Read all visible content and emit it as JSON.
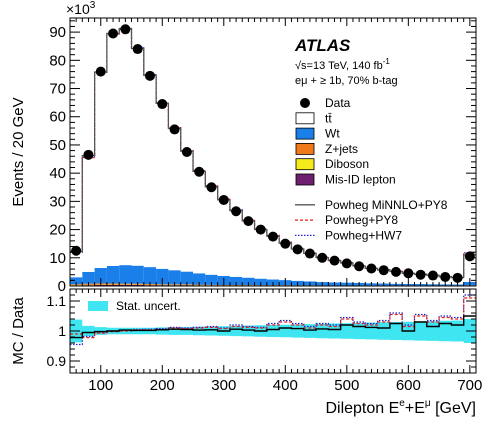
{
  "chart_data": {
    "type": "histogram",
    "experiment": "ATLAS",
    "multiplier": "×10",
    "multiplier_exp": "3",
    "energy_text": "s=13 TeV, 140 fb",
    "energy_exp": "-1",
    "sqrt_symbol": "√",
    "selection": "eμ + ≥ 1b, 70% b-tag",
    "ylabel": "Events / 20 GeV",
    "xlabel_parts": {
      "base": "Dilepton E",
      "sup1": "e",
      "mid": "+E",
      "sup2": "μ",
      "unit": " [GeV]"
    },
    "ratio_ylabel": "MC / Data",
    "xlim": [
      50,
      710
    ],
    "ylim": [
      0,
      95
    ],
    "ratio_ylim": [
      0.86,
      1.14
    ],
    "x_ticks": [
      100,
      200,
      300,
      400,
      500,
      600,
      700
    ],
    "y_ticks": [
      0,
      10,
      20,
      30,
      40,
      50,
      60,
      70,
      80,
      90
    ],
    "ratio_y_ticks": [
      0.9,
      1,
      1.1
    ],
    "bin_edges": [
      50,
      70,
      90,
      110,
      130,
      150,
      170,
      190,
      210,
      230,
      250,
      270,
      290,
      310,
      330,
      350,
      370,
      390,
      410,
      430,
      450,
      470,
      490,
      510,
      530,
      550,
      570,
      590,
      610,
      630,
      650,
      670,
      690,
      710
    ],
    "data": [
      12.5,
      46.5,
      76,
      89.5,
      91,
      84,
      74.5,
      64.5,
      55.5,
      47.5,
      40.5,
      35,
      30.5,
      26.5,
      23,
      20,
      17.5,
      15,
      13,
      11.5,
      10,
      9,
      8,
      7,
      6.2,
      5.6,
      5,
      4.5,
      4,
      3.7,
      3.2,
      2.9,
      10.5
    ],
    "wt": [
      2.5,
      4.2,
      5.5,
      6.2,
      6.6,
      6.4,
      6.0,
      5.5,
      5.0,
      4.5,
      4.0,
      3.6,
      3.2,
      2.9,
      2.6,
      2.3,
      2.0,
      1.8,
      1.6,
      1.4,
      1.2,
      1.1,
      1.0,
      0.9,
      0.8,
      0.7,
      0.6,
      0.55,
      0.5,
      0.45,
      0.4,
      0.35,
      1.2
    ],
    "zjets": [
      0.3,
      0.4,
      0.4,
      0.4,
      0.3,
      0.3,
      0.3,
      0.2,
      0.2,
      0.2,
      0.2,
      0.1,
      0.1,
      0.1,
      0.1,
      0.1,
      0.1,
      0.1,
      0.1,
      0.1,
      0.05,
      0.05,
      0.05,
      0.05,
      0.05,
      0.05,
      0.05,
      0.05,
      0.05,
      0.05,
      0.05,
      0.05,
      0.1
    ],
    "diboson": [
      0.1,
      0.1,
      0.1,
      0.1,
      0.1,
      0.1,
      0.1,
      0.1,
      0.1,
      0.1,
      0.1,
      0.1,
      0.05,
      0.05,
      0.05,
      0.05,
      0.05,
      0.05,
      0.05,
      0.05,
      0.05,
      0.05,
      0.05,
      0.05,
      0.05,
      0.05,
      0.05,
      0.05,
      0.05,
      0.05,
      0.05,
      0.05,
      0.05
    ],
    "misid": [
      0.2,
      0.3,
      0.4,
      0.4,
      0.4,
      0.4,
      0.3,
      0.3,
      0.3,
      0.3,
      0.2,
      0.2,
      0.2,
      0.2,
      0.2,
      0.15,
      0.15,
      0.15,
      0.1,
      0.1,
      0.1,
      0.1,
      0.1,
      0.1,
      0.1,
      0.1,
      0.1,
      0.1,
      0.1,
      0.1,
      0.1,
      0.1,
      0.1
    ],
    "ratio_minnlo": [
      0.978,
      0.995,
      0.998,
      1.0,
      1.003,
      1.002,
      1.002,
      1.004,
      1.006,
      1.005,
      1.003,
      1.004,
      1.0,
      1.006,
      1.003,
      1.0,
      1.005,
      1.01,
      1.008,
      1.003,
      1.007,
      1.005,
      1.02,
      1.015,
      1.012,
      1.01,
      1.025,
      1.0,
      1.03,
      1.015,
      1.025,
      1.02,
      1.05
    ],
    "ratio_py8": [
      0.99,
      0.978,
      0.993,
      0.998,
      1.0,
      1.004,
      1.004,
      1.005,
      1.01,
      1.008,
      1.01,
      1.012,
      1.008,
      1.015,
      1.012,
      1.01,
      1.02,
      1.03,
      1.02,
      1.01,
      1.02,
      1.015,
      1.04,
      1.025,
      1.02,
      1.03,
      1.055,
      1.015,
      1.05,
      1.03,
      1.045,
      1.04,
      1.11
    ],
    "ratio_hw7": [
      0.955,
      0.982,
      0.996,
      1.0,
      1.002,
      1.005,
      1.006,
      1.008,
      1.012,
      1.01,
      1.012,
      1.015,
      1.01,
      1.02,
      1.015,
      1.012,
      1.025,
      1.035,
      1.025,
      1.015,
      1.025,
      1.02,
      1.045,
      1.03,
      1.025,
      1.035,
      1.06,
      1.02,
      1.055,
      1.035,
      1.05,
      1.045,
      1.12
    ],
    "ratio_unc": [
      0.038,
      0.017,
      0.013,
      0.011,
      0.011,
      0.011,
      0.011,
      0.012,
      0.013,
      0.013,
      0.014,
      0.015,
      0.016,
      0.017,
      0.018,
      0.019,
      0.02,
      0.021,
      0.022,
      0.023,
      0.024,
      0.025,
      0.026,
      0.027,
      0.028,
      0.029,
      0.03,
      0.031,
      0.032,
      0.033,
      0.034,
      0.035,
      0.04
    ],
    "legend": [
      {
        "key": "data",
        "label": "Data"
      },
      {
        "key": "ttbar",
        "label": "tt̄"
      },
      {
        "key": "wt",
        "label": "Wt"
      },
      {
        "key": "zjets",
        "label": "Z+jets"
      },
      {
        "key": "diboson",
        "label": "Diboson"
      },
      {
        "key": "misid",
        "label": "Mis-ID lepton"
      },
      {
        "key": "minnlo",
        "label": "Powheg MiNNLO+PY8"
      },
      {
        "key": "py8",
        "label": "Powheg+PY8"
      },
      {
        "key": "hw7",
        "label": "Powheg+HW7"
      }
    ],
    "ratio_legend": "Stat. uncert.",
    "colors": {
      "ttbar": "#ffffff",
      "wt": "#1a7fe8",
      "zjets": "#f07a1a",
      "diboson": "#f5ea1c",
      "misid": "#6e1f6e",
      "minnlo": "#555555",
      "py8": "#e02020",
      "hw7": "#2020d0",
      "unc": "#3fe6f2"
    },
    "legend_placement": "top-right"
  }
}
